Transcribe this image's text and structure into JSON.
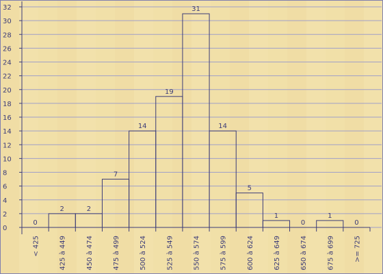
{
  "chart_data": {
    "type": "bar",
    "categories": [
      "< 425",
      "425 à 449",
      "450 à 474",
      "475 à 499",
      "500 à 524",
      "525 à 549",
      "550 à 574",
      "575 à 599",
      "600 à 624",
      "625 à 649",
      "650 à 674",
      "675 à 699",
      ">= 725"
    ],
    "values": [
      0,
      2,
      2,
      7,
      14,
      19,
      31,
      14,
      5,
      1,
      0,
      1,
      0
    ],
    "ylim": [
      0,
      32
    ],
    "yticks": [
      0,
      2,
      4,
      6,
      8,
      10,
      12,
      14,
      16,
      18,
      20,
      22,
      24,
      26,
      28,
      30,
      32
    ],
    "grid": true,
    "colors": {
      "background": "#f4e4b0",
      "grain": "#e8d291",
      "grid": "#a0a0c8",
      "bar_stroke": "#3c3c78",
      "text": "#3c3c78"
    }
  }
}
